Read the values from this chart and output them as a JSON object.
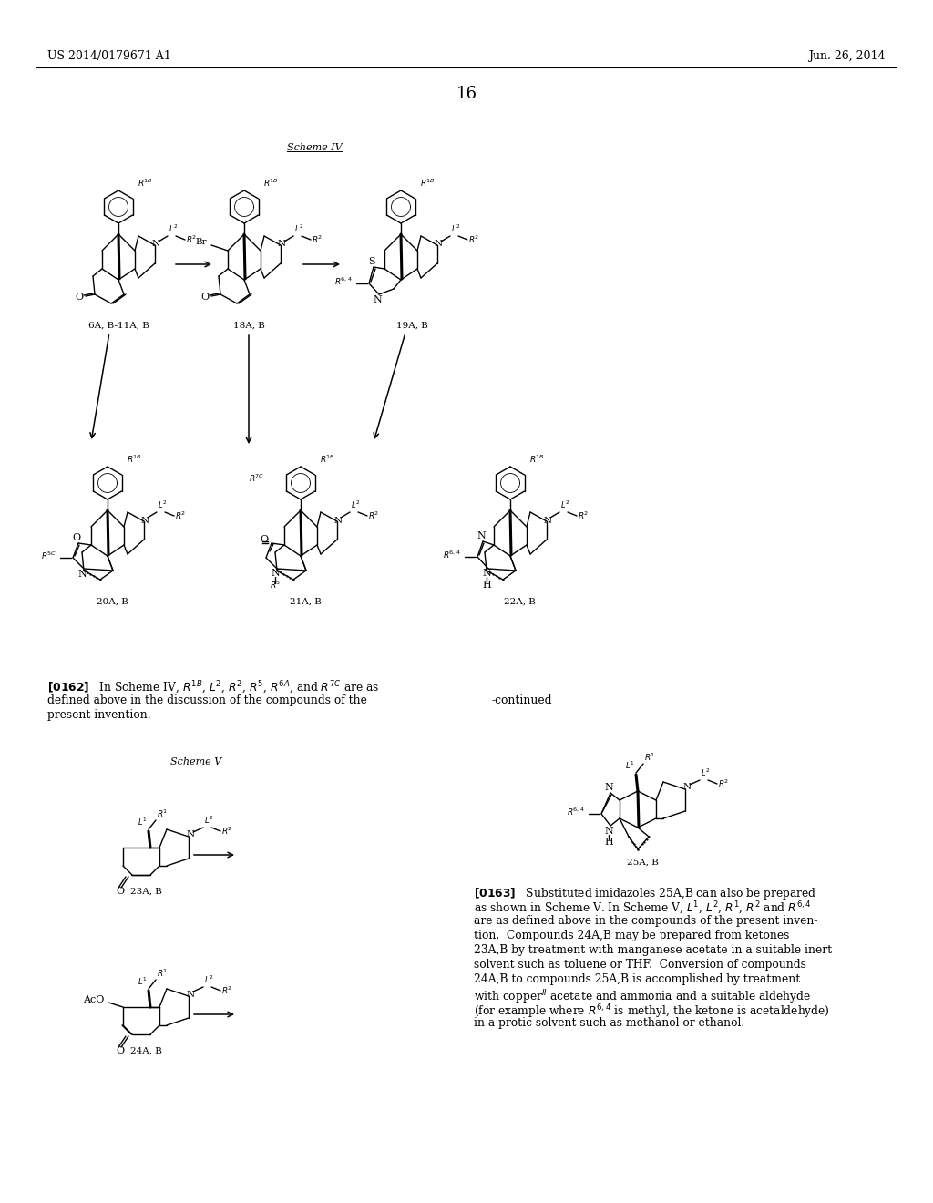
{
  "bg": "#ffffff",
  "header_left": "US 2014/0179671 A1",
  "header_right": "Jun. 26, 2014",
  "page_num": "16",
  "scheme_iv": "Scheme IV",
  "scheme_v": "Scheme V",
  "continued": "-continued",
  "label_6A": "6A, B-11A, B",
  "label_18A": "18A, B",
  "label_19A": "19A, B",
  "label_20A": "20A, B",
  "label_21A": "21A, B",
  "label_22A": "22A, B",
  "label_23A": "23A, B",
  "label_24A": "24A, B",
  "label_25A": "25A, B"
}
